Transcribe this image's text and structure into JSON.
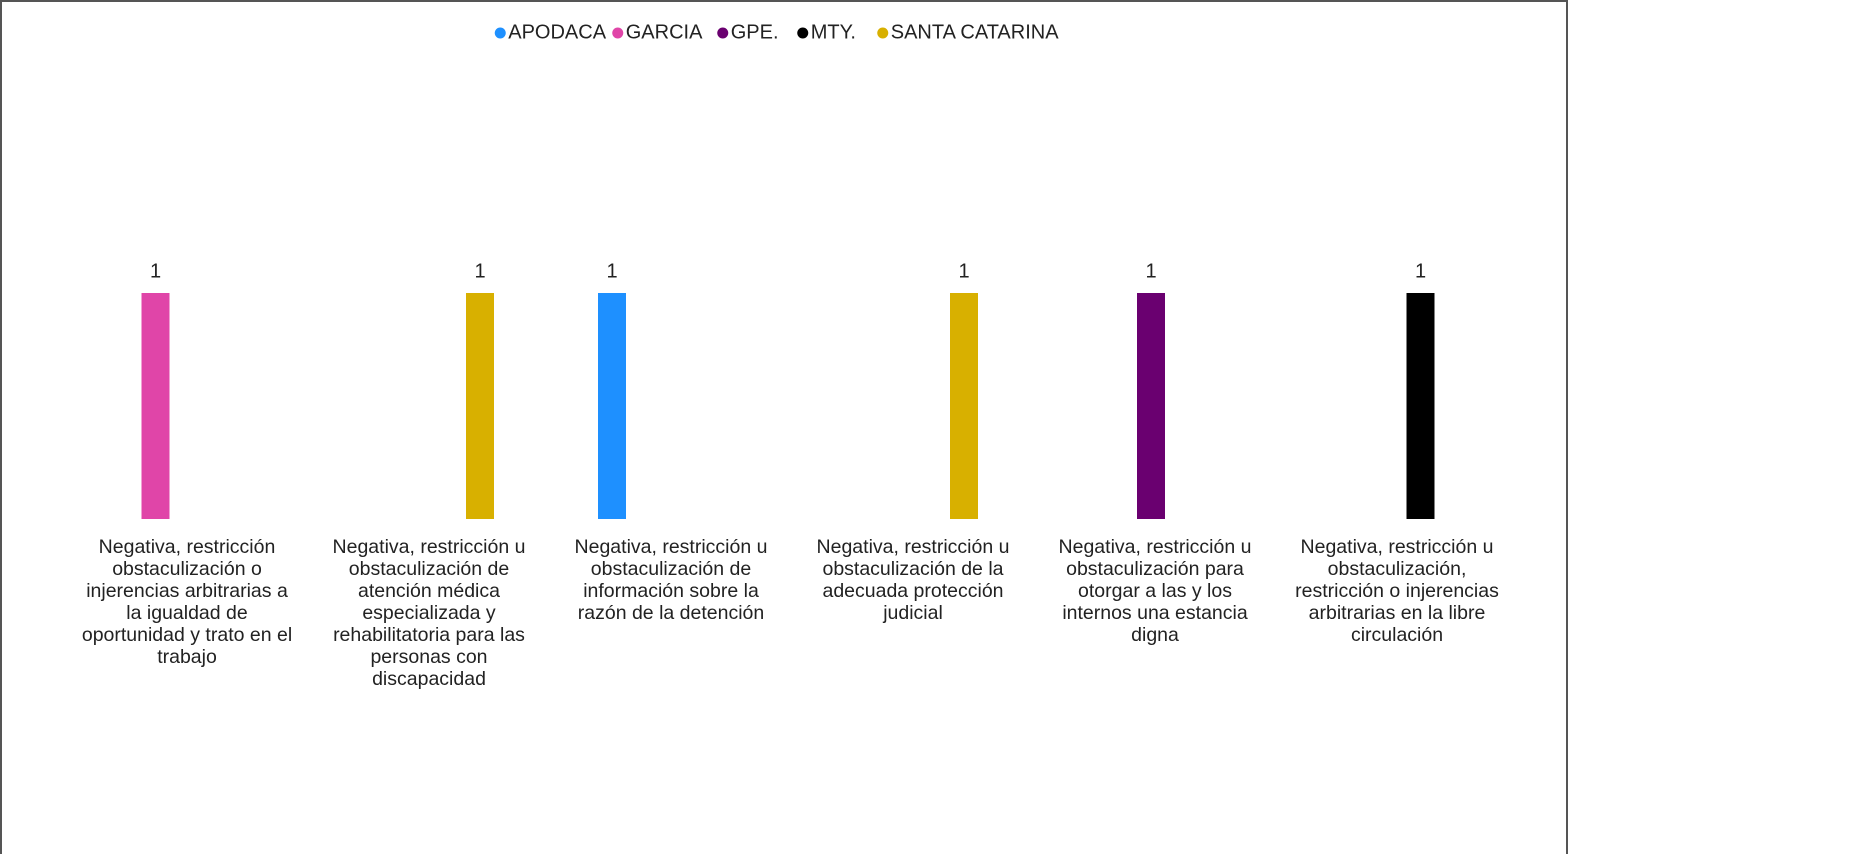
{
  "chart_data": {
    "type": "bar",
    "categories": [
      "Negativa, restricción obstaculización o injerencias arbitrarias a la igualdad de oportunidad y trato en el trabajo",
      "Negativa, restricción u obstaculización de atención médica especializada y rehabilitatoria para las personas con discapacidad",
      "Negativa, restricción u obstaculización de información sobre la razón de la detención",
      "Negativa, restricción u obstaculización de la adecuada protección judicial",
      "Negativa, restricción u obstaculización para otorgar a las y los internos una estancia digna",
      "Negativa, restricción u obstaculización, restricción o injerencias arbitrarias en la libre circulación"
    ],
    "series": [
      {
        "name": "APODACA",
        "color": "#1e90ff",
        "values": [
          null,
          null,
          1,
          null,
          null,
          null
        ]
      },
      {
        "name": "GARCIA",
        "color": "#e045a8",
        "values": [
          1,
          null,
          null,
          null,
          null,
          null
        ]
      },
      {
        "name": "GPE.",
        "color": "#6a0070",
        "values": [
          null,
          null,
          null,
          null,
          1,
          null
        ]
      },
      {
        "name": "MTY.",
        "color": "#000000",
        "values": [
          null,
          null,
          null,
          null,
          null,
          1
        ]
      },
      {
        "name": "SANTA CATARINA",
        "color": "#d8b000",
        "values": [
          null,
          1,
          null,
          1,
          null,
          null
        ]
      }
    ],
    "ylim": [
      0,
      2
    ],
    "legend": "top"
  }
}
